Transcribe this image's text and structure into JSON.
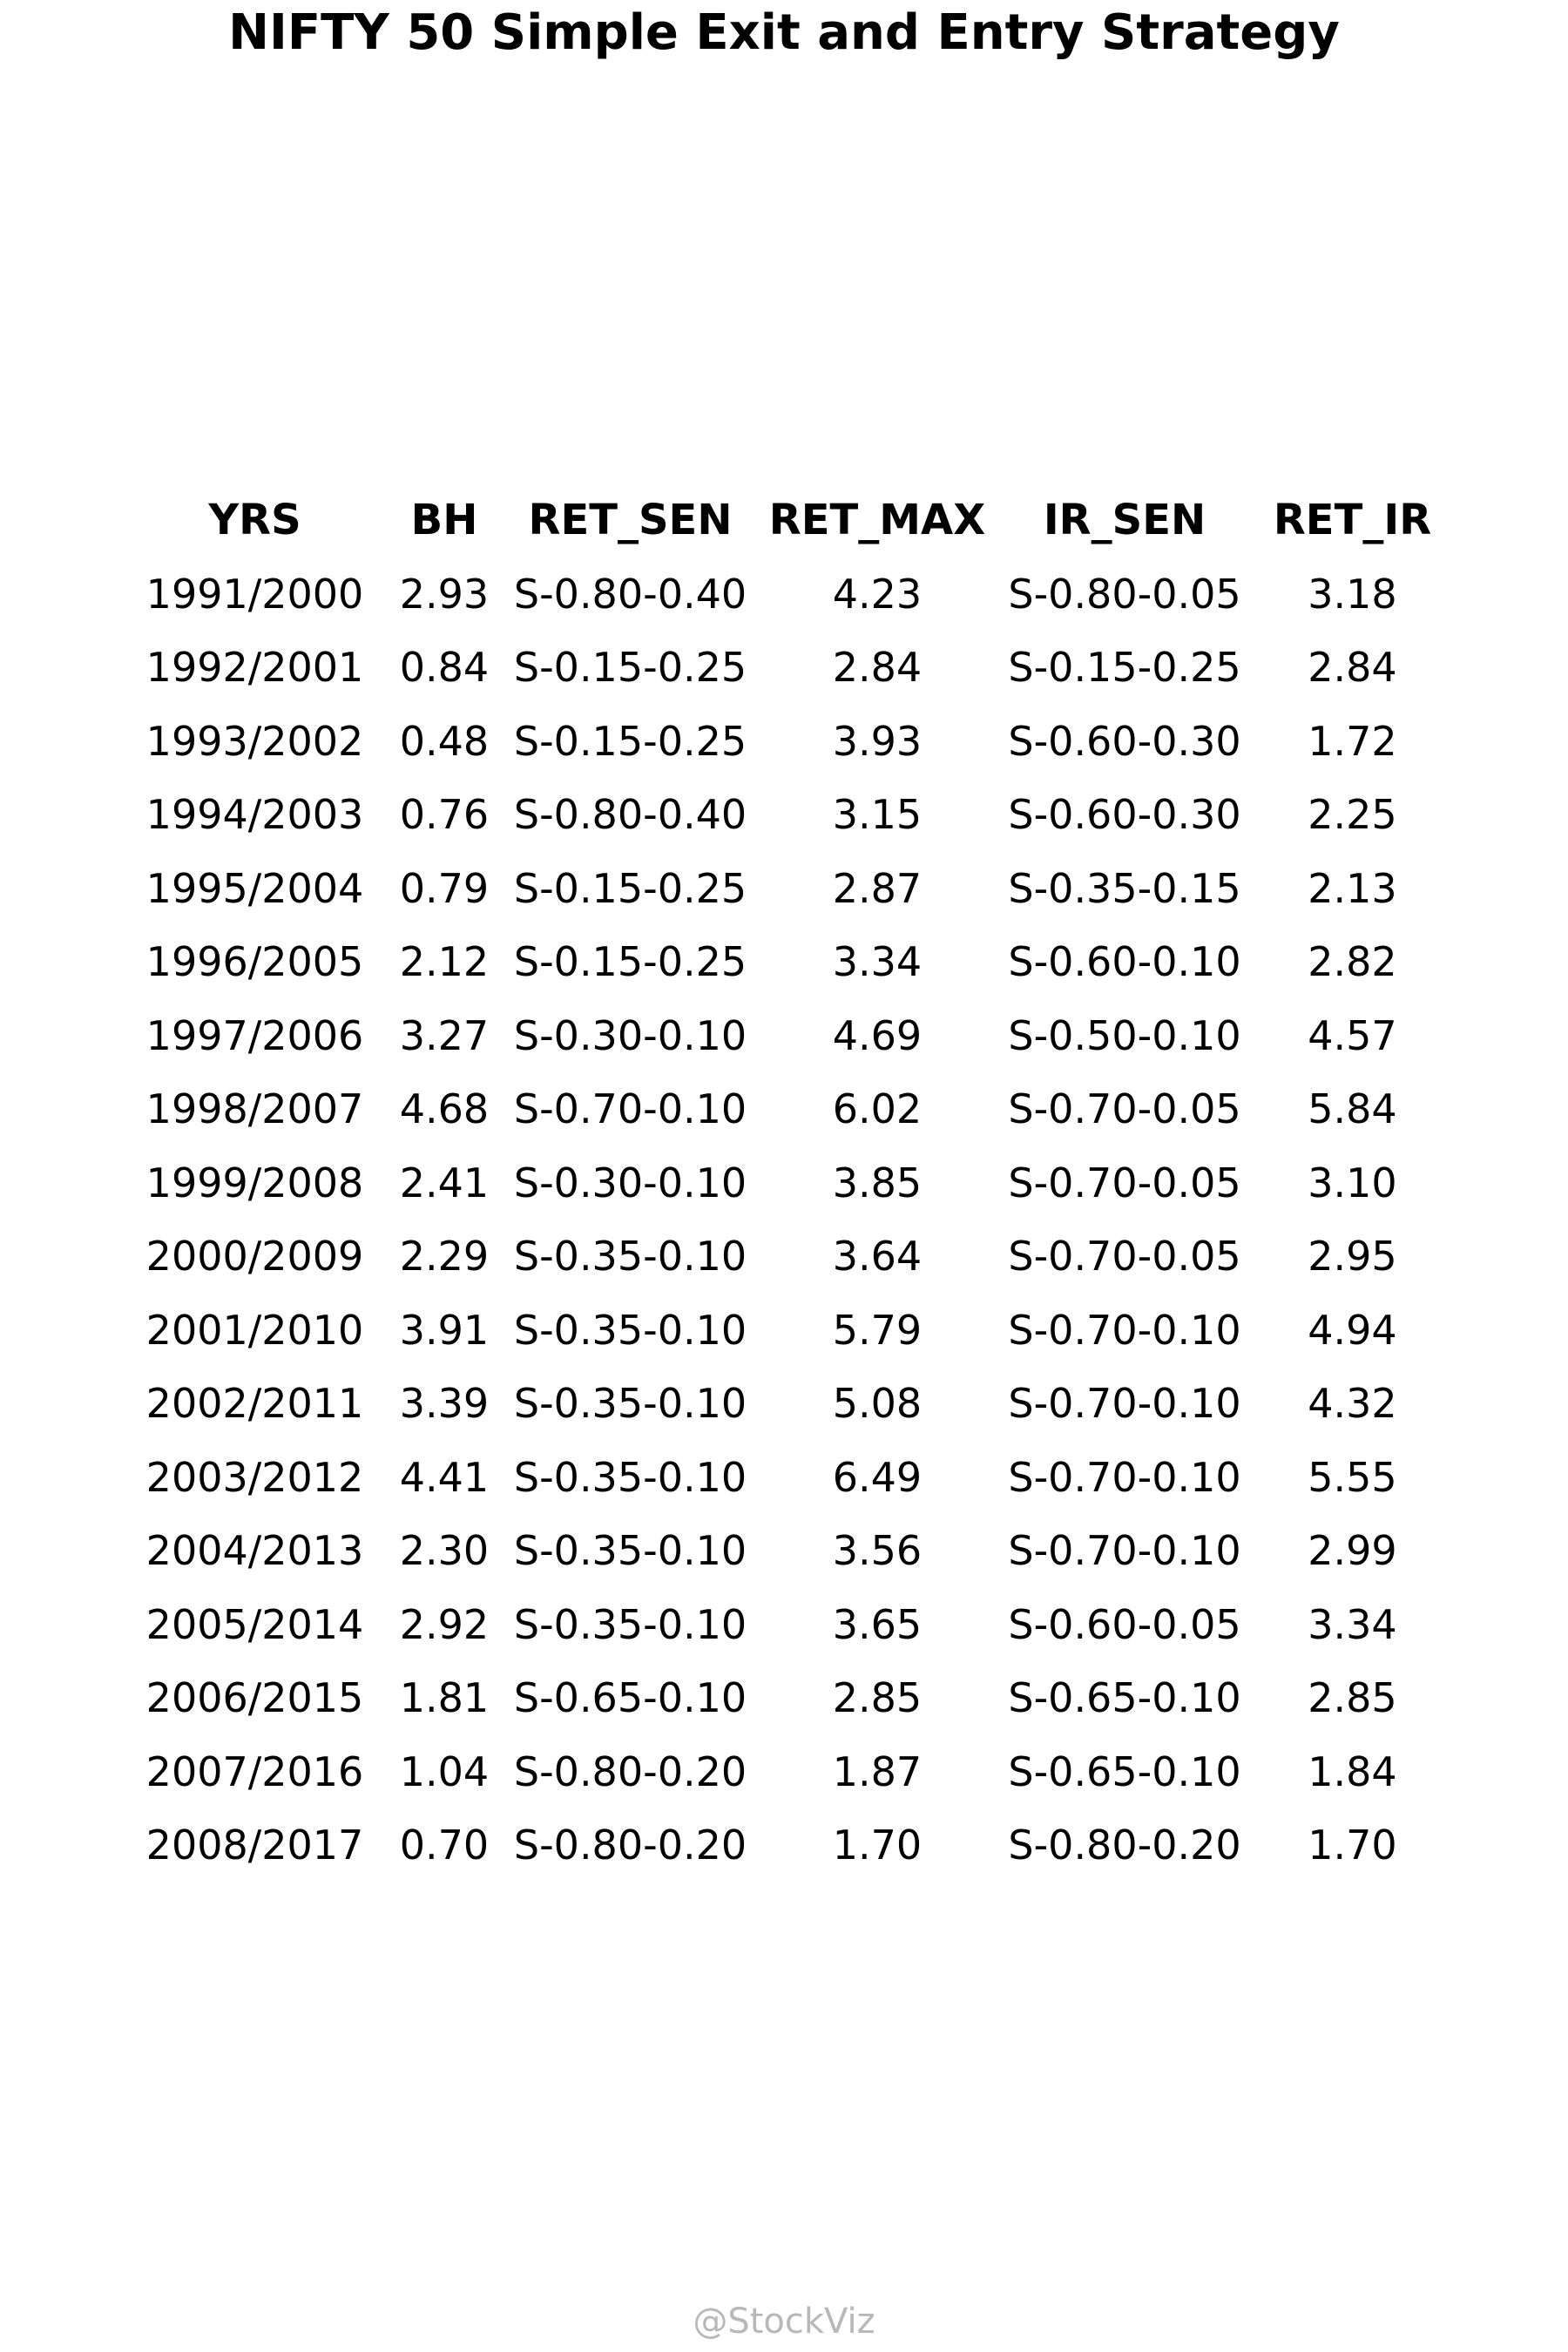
{
  "chart_data": {
    "type": "table",
    "title": "NIFTY 50 Simple Exit and Entry Strategy",
    "columns": [
      "YRS",
      "BH",
      "RET_SEN",
      "RET_MAX",
      "IR_SEN",
      "RET_IR"
    ],
    "rows": [
      [
        "1991/2000",
        "2.93",
        "S-0.80-0.40",
        "4.23",
        "S-0.80-0.05",
        "3.18"
      ],
      [
        "1992/2001",
        "0.84",
        "S-0.15-0.25",
        "2.84",
        "S-0.15-0.25",
        "2.84"
      ],
      [
        "1993/2002",
        "0.48",
        "S-0.15-0.25",
        "3.93",
        "S-0.60-0.30",
        "1.72"
      ],
      [
        "1994/2003",
        "0.76",
        "S-0.80-0.40",
        "3.15",
        "S-0.60-0.30",
        "2.25"
      ],
      [
        "1995/2004",
        "0.79",
        "S-0.15-0.25",
        "2.87",
        "S-0.35-0.15",
        "2.13"
      ],
      [
        "1996/2005",
        "2.12",
        "S-0.15-0.25",
        "3.34",
        "S-0.60-0.10",
        "2.82"
      ],
      [
        "1997/2006",
        "3.27",
        "S-0.30-0.10",
        "4.69",
        "S-0.50-0.10",
        "4.57"
      ],
      [
        "1998/2007",
        "4.68",
        "S-0.70-0.10",
        "6.02",
        "S-0.70-0.05",
        "5.84"
      ],
      [
        "1999/2008",
        "2.41",
        "S-0.30-0.10",
        "3.85",
        "S-0.70-0.05",
        "3.10"
      ],
      [
        "2000/2009",
        "2.29",
        "S-0.35-0.10",
        "3.64",
        "S-0.70-0.05",
        "2.95"
      ],
      [
        "2001/2010",
        "3.91",
        "S-0.35-0.10",
        "5.79",
        "S-0.70-0.10",
        "4.94"
      ],
      [
        "2002/2011",
        "3.39",
        "S-0.35-0.10",
        "5.08",
        "S-0.70-0.10",
        "4.32"
      ],
      [
        "2003/2012",
        "4.41",
        "S-0.35-0.10",
        "6.49",
        "S-0.70-0.10",
        "5.55"
      ],
      [
        "2004/2013",
        "2.30",
        "S-0.35-0.10",
        "3.56",
        "S-0.70-0.10",
        "2.99"
      ],
      [
        "2005/2014",
        "2.92",
        "S-0.35-0.10",
        "3.65",
        "S-0.60-0.05",
        "3.34"
      ],
      [
        "2006/2015",
        "1.81",
        "S-0.65-0.10",
        "2.85",
        "S-0.65-0.10",
        "2.85"
      ],
      [
        "2007/2016",
        "1.04",
        "S-0.80-0.20",
        "1.87",
        "S-0.65-0.10",
        "1.84"
      ],
      [
        "2008/2017",
        "0.70",
        "S-0.80-0.20",
        "1.70",
        "S-0.80-0.20",
        "1.70"
      ]
    ]
  },
  "watermark": "@StockViz"
}
